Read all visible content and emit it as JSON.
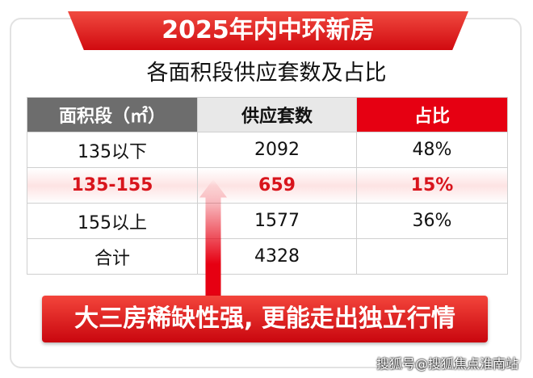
{
  "header": {
    "title": "2025年内中环新房",
    "subtitle": "各面积段供应套数及占比"
  },
  "table": {
    "columns": [
      "面积段（㎡）",
      "供应套数",
      "占比"
    ],
    "rows": [
      [
        "135以下",
        "2092",
        "48%"
      ],
      [
        "135-155",
        "659",
        "15%"
      ],
      [
        "155以上",
        "1577",
        "36%"
      ],
      [
        "合计",
        "4328"
      ]
    ],
    "highlight_row": 1
  },
  "callout": "大三房稀缺性强, 更能走出独立行情",
  "watermark": "搜狐号@搜狐焦点淮南站"
}
